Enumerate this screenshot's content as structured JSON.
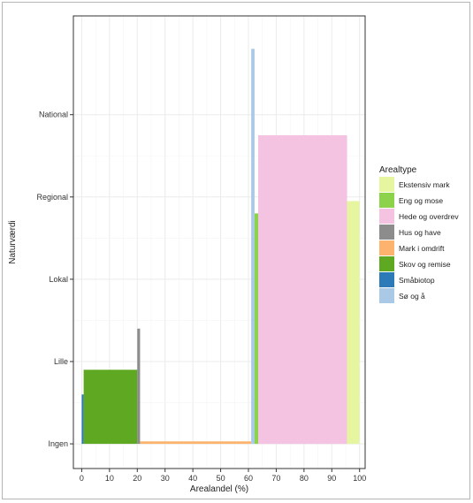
{
  "chart_data": {
    "type": "bar",
    "xlabel": "Arealandel (%)",
    "ylabel": "Naturværdi",
    "xlim": [
      -3,
      102
    ],
    "xticks": [
      0,
      10,
      20,
      30,
      40,
      50,
      60,
      70,
      80,
      90,
      100
    ],
    "ylim": [
      -0.3,
      5.2
    ],
    "categories": [
      "Ingen",
      "Lille",
      "Lokal",
      "Regional",
      "National"
    ],
    "legend": {
      "title": "Arealtype",
      "position": "right",
      "entries": [
        {
          "label": "Ekstensiv mark",
          "color": "#e6f5a0"
        },
        {
          "label": "Eng og mose",
          "color": "#8cd24a"
        },
        {
          "label": "Hede og overdrev",
          "color": "#f4c3e2"
        },
        {
          "label": "Hus og have",
          "color": "#8c8c8c"
        },
        {
          "label": "Mark i omdrift",
          "color": "#fbb36d"
        },
        {
          "label": "Skov og remise",
          "color": "#5ea822"
        },
        {
          "label": "Småbiotop",
          "color": "#2d7ab9"
        },
        {
          "label": "Sø og å",
          "color": "#a9c9e6"
        }
      ]
    },
    "bars": [
      {
        "series": "Småbiotop",
        "x_start": 0,
        "x_end": 0.7,
        "value": "Lille",
        "y": 0.6
      },
      {
        "series": "Skov og remise",
        "x_start": 0.7,
        "x_end": 20,
        "value": "Lille",
        "y": 0.9
      },
      {
        "series": "Hus og have",
        "x_start": 20,
        "x_end": 21,
        "value": "Lille",
        "y": 1.4
      },
      {
        "series": "Mark i omdrift",
        "x_start": 21,
        "x_end": 61,
        "value": "Ingen",
        "y": 0.03
      },
      {
        "series": "Sø og å",
        "x_start": 61,
        "x_end": 62.2,
        "value": "National",
        "y": 4.8
      },
      {
        "series": "Eng og mose",
        "x_start": 62.2,
        "x_end": 63.5,
        "value": "Regional",
        "y": 2.8
      },
      {
        "series": "Hede og overdrev",
        "x_start": 63.5,
        "x_end": 95.5,
        "value": "National",
        "y": 3.75
      },
      {
        "series": "Ekstensiv mark",
        "x_start": 95.5,
        "x_end": 100,
        "value": "Regional",
        "y": 2.95
      }
    ],
    "grid": true
  }
}
